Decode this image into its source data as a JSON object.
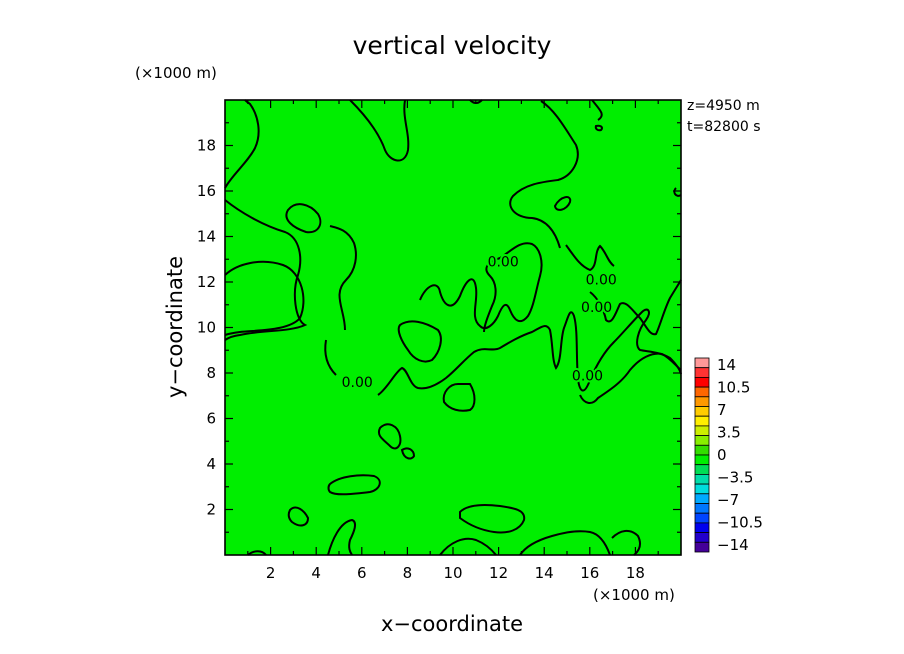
{
  "chart_data": {
    "type": "heatmap",
    "title": "vertical velocity",
    "xlabel": "x−coordinate",
    "ylabel": "y−coordinate",
    "x_unit": "(×1000 m)",
    "y_unit": "(×1000 m)",
    "xlim": [
      0,
      20
    ],
    "ylim": [
      0,
      20
    ],
    "x_ticks": [
      2,
      4,
      6,
      8,
      10,
      12,
      14,
      16,
      18
    ],
    "y_ticks": [
      2,
      4,
      6,
      8,
      10,
      12,
      14,
      16,
      18
    ],
    "annotations": [
      "z=4950 m",
      "t=82800 s"
    ],
    "contour_labels": [
      {
        "text": "0.00",
        "x": 12.2,
        "y": 12.9
      },
      {
        "text": "0.00",
        "x": 5.8,
        "y": 7.6
      },
      {
        "text": "0.00",
        "x": 16.5,
        "y": 12.1
      },
      {
        "text": "0.00",
        "x": 16.3,
        "y": 10.9
      },
      {
        "text": "0.00",
        "x": 15.9,
        "y": 7.9
      }
    ],
    "colorbar": {
      "labels": [
        "14",
        "10.5",
        "7",
        "3.5",
        "0",
        "−3.5",
        "−7",
        "−10.5",
        "−14"
      ],
      "colors": [
        "#ff9999",
        "#ff3333",
        "#ff0000",
        "#ff6600",
        "#ff9900",
        "#ffcc00",
        "#ffee00",
        "#ccee00",
        "#88ee00",
        "#33dd00",
        "#00ee00",
        "#00dd55",
        "#00ddaa",
        "#00dddd",
        "#00aaff",
        "#0077ff",
        "#0044ff",
        "#0000ee",
        "#2200cc",
        "#440099"
      ]
    },
    "field_color": "#00ee00",
    "contour_level": 0.0
  }
}
